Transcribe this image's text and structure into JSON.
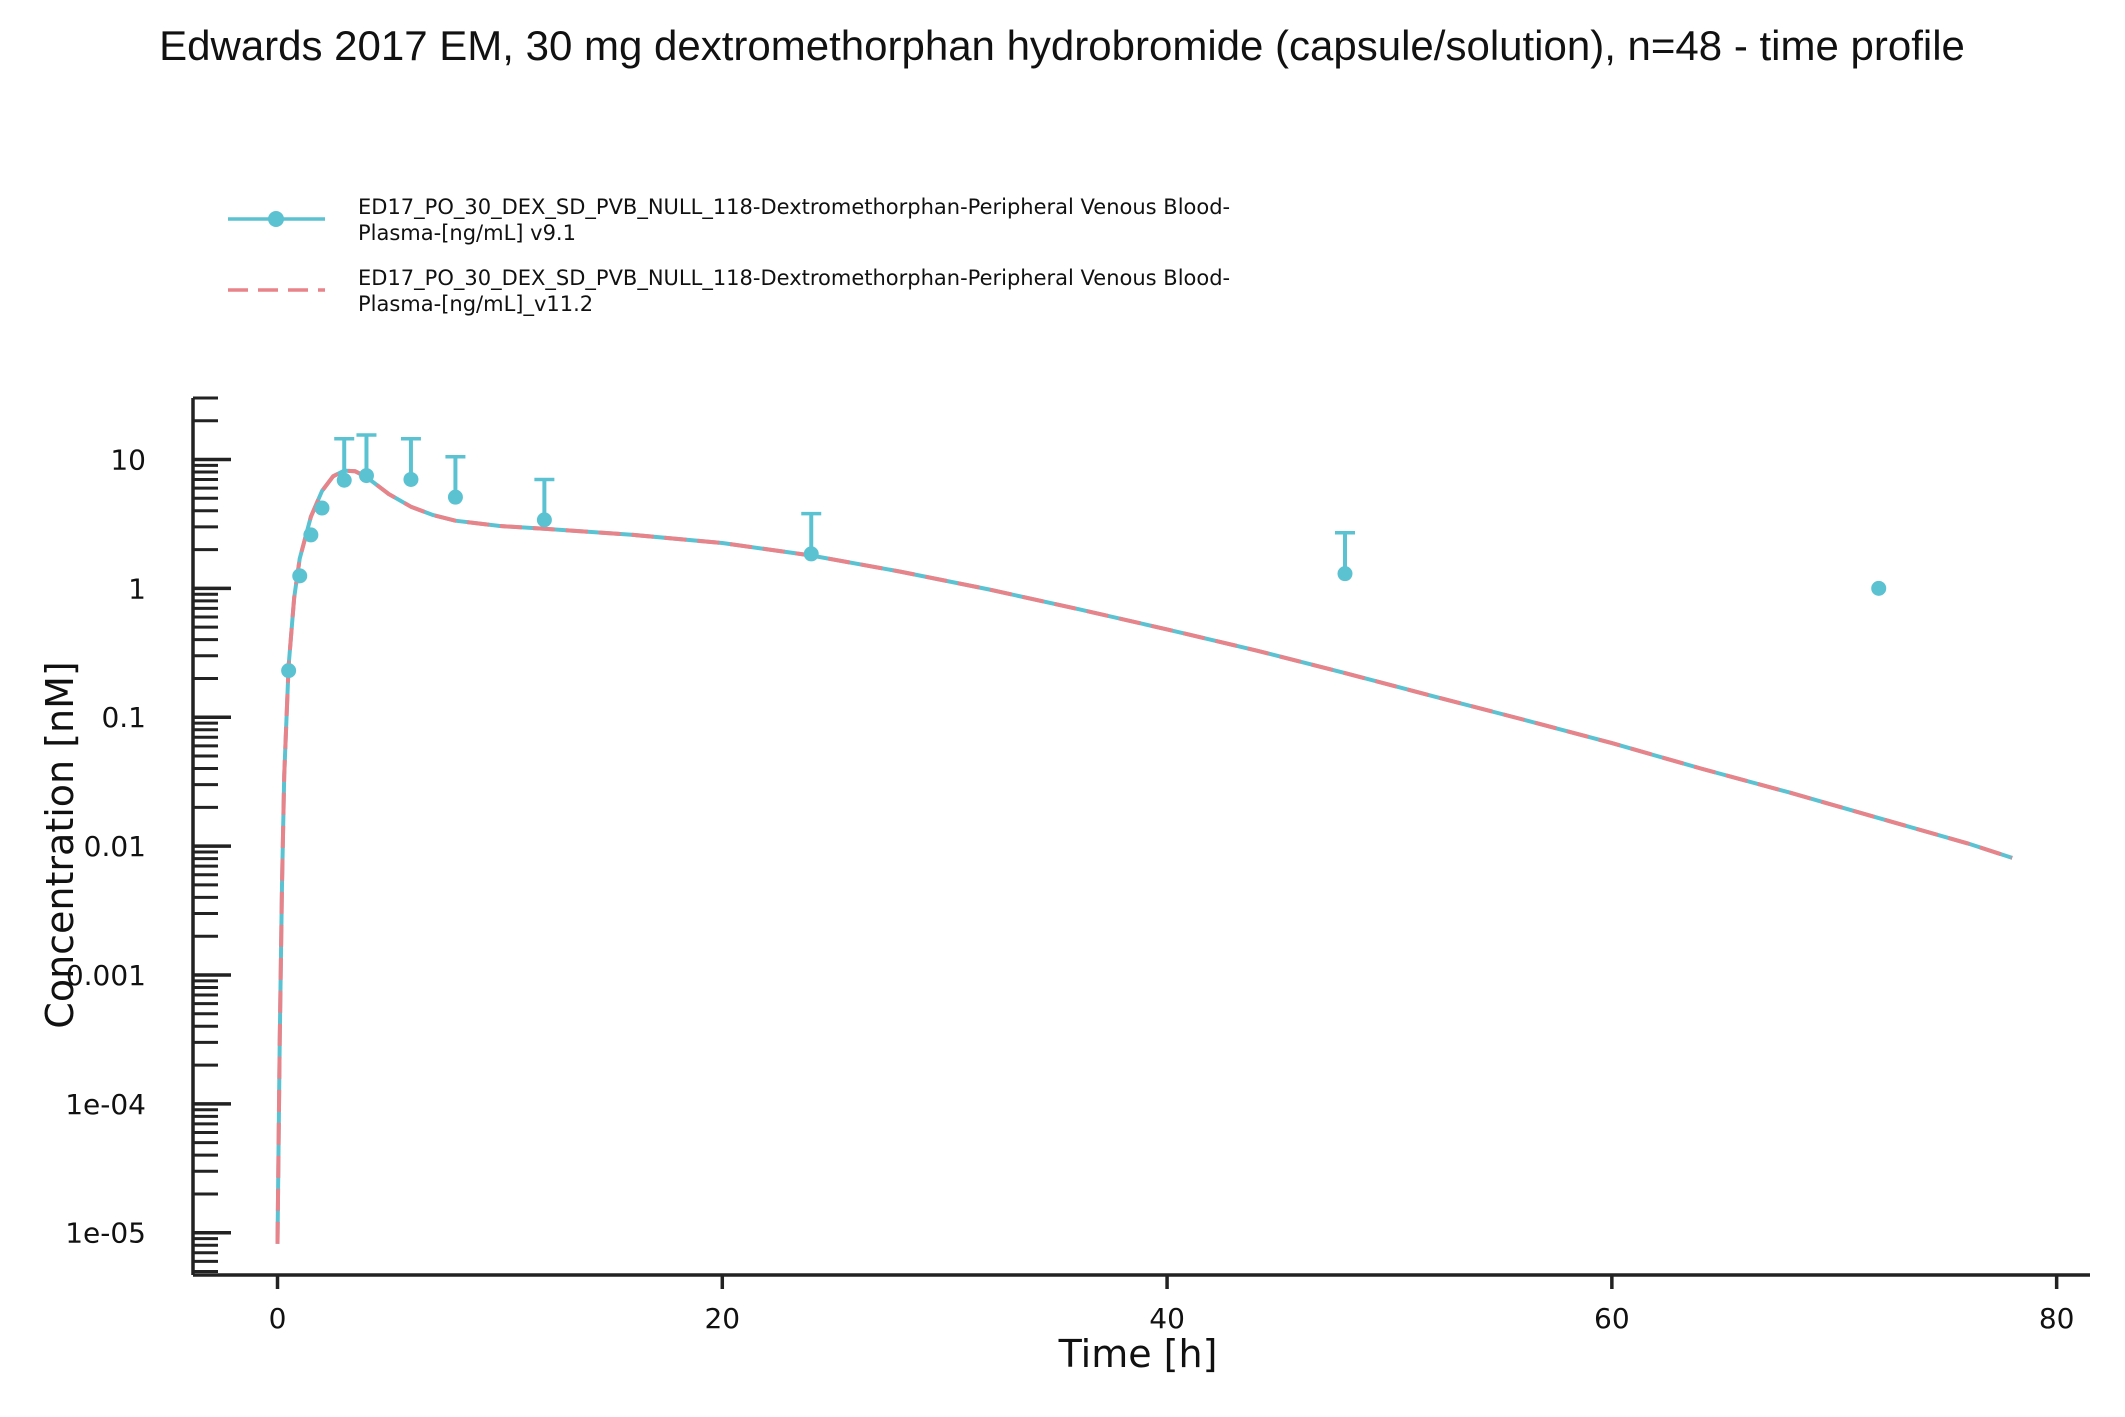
{
  "chart_data": {
    "type": "line",
    "title": "Edwards 2017 EM, 30 mg dextromethorphan hydrobromide (capsule/solution), n=48 - time profile",
    "xlabel": "Time [h]",
    "ylabel": "Concentration [nM]",
    "xlim": [
      -3.8,
      81.5
    ],
    "ylim": [
      4.7e-06,
      30
    ],
    "yscale": "log",
    "x_ticks": [
      0,
      20,
      40,
      60,
      80
    ],
    "x_tick_labels": [
      "0",
      "20",
      "40",
      "60",
      "80"
    ],
    "y_ticks": [
      1e-05,
      0.0001,
      0.001,
      0.01,
      0.1,
      1,
      10
    ],
    "y_tick_labels": [
      "1e-05",
      "1e-04",
      "0.001",
      "0.01",
      "0.1",
      "1",
      "10"
    ],
    "grid": false,
    "legend_position": "top-left",
    "series": [
      {
        "name_lines": [
          "ED17_PO_30_DEX_SD_PVB_NULL_118-Dextromethorphan-Peripheral Venous Blood-",
          "Plasma-[ng/mL] v9.1"
        ],
        "color": "#5bc2d2",
        "style": "solid line with markers",
        "x": [
          0,
          0.1,
          0.2,
          0.3,
          0.5,
          0.75,
          1,
          1.5,
          2,
          2.5,
          3,
          3.5,
          4,
          5,
          6,
          7,
          8,
          10,
          12,
          16,
          20,
          24,
          28,
          32,
          36,
          40,
          44,
          48,
          52,
          56,
          60,
          64,
          68,
          72,
          76,
          78
        ],
        "y": [
          8.2e-06,
          0.0003,
          0.005,
          0.035,
          0.25,
          0.85,
          1.7,
          3.6,
          5.7,
          7.4,
          8.2,
          8.1,
          7.3,
          5.4,
          4.3,
          3.7,
          3.35,
          3.05,
          2.9,
          2.6,
          2.25,
          1.8,
          1.35,
          0.98,
          0.69,
          0.48,
          0.33,
          0.22,
          0.145,
          0.096,
          0.063,
          0.04,
          0.026,
          0.0165,
          0.0105,
          0.0081
        ]
      },
      {
        "name_lines": [
          "ED17_PO_30_DEX_SD_PVB_NULL_118-Dextromethorphan-Peripheral Venous Blood-",
          "Plasma-[ng/mL]_v11.2"
        ],
        "color": "#e8838a",
        "style": "dashed line",
        "x": [
          0,
          0.1,
          0.2,
          0.3,
          0.5,
          0.75,
          1,
          1.5,
          2,
          2.5,
          3,
          3.5,
          4,
          5,
          6,
          7,
          8,
          10,
          12,
          16,
          20,
          24,
          28,
          32,
          36,
          40,
          44,
          48,
          52,
          56,
          60,
          64,
          68,
          72,
          76,
          78
        ],
        "y": [
          8.2e-06,
          0.0003,
          0.005,
          0.035,
          0.25,
          0.85,
          1.7,
          3.6,
          5.7,
          7.4,
          8.2,
          8.1,
          7.3,
          5.4,
          4.3,
          3.7,
          3.35,
          3.05,
          2.9,
          2.6,
          2.25,
          1.8,
          1.35,
          0.98,
          0.69,
          0.48,
          0.33,
          0.22,
          0.145,
          0.096,
          0.063,
          0.04,
          0.026,
          0.0165,
          0.0105,
          0.0081
        ]
      }
    ],
    "observed": {
      "color": "#5bc2d2",
      "x": [
        0.5,
        1,
        1.5,
        2,
        3,
        4,
        6,
        8,
        12,
        24,
        48,
        72
      ],
      "y": [
        0.23,
        1.25,
        2.6,
        4.2,
        6.9,
        7.5,
        7.0,
        5.1,
        3.4,
        1.85,
        1.3,
        1.0
      ],
      "y_upper": [
        null,
        null,
        null,
        null,
        14.5,
        15.5,
        14.5,
        10.5,
        7.0,
        3.8,
        2.7,
        null
      ]
    }
  }
}
